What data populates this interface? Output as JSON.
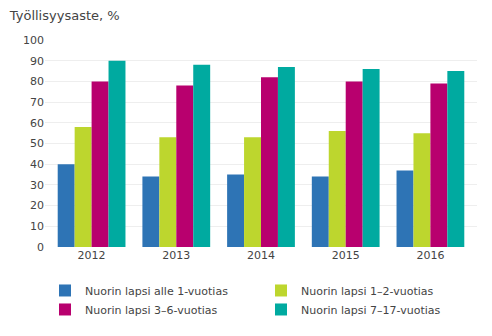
{
  "chart_data": {
    "type": "bar",
    "title": "Työllisyysaste, %",
    "categories": [
      "2012",
      "2013",
      "2014",
      "2015",
      "2016"
    ],
    "series": [
      {
        "name": "Nuorin lapsi alle 1-vuotias",
        "color": "#2e74b5",
        "values": [
          40,
          34,
          35,
          34,
          37
        ]
      },
      {
        "name": "Nuorin lapsi 1–2-vuotias",
        "color": "#bdd62e",
        "values": [
          58,
          53,
          53,
          56,
          55
        ]
      },
      {
        "name": "Nuorin lapsi 3–6-vuotias",
        "color": "#b8006e",
        "values": [
          80,
          78,
          82,
          80,
          79
        ]
      },
      {
        "name": "Nuorin lapsi 7–17-vuotias",
        "color": "#00aaa0",
        "values": [
          90,
          88,
          87,
          86,
          85
        ]
      }
    ],
    "ylim": [
      0,
      100
    ],
    "yticks": [
      0,
      10,
      20,
      30,
      40,
      50,
      60,
      70,
      80,
      90,
      100
    ],
    "grid": true,
    "legend": "bottom"
  }
}
